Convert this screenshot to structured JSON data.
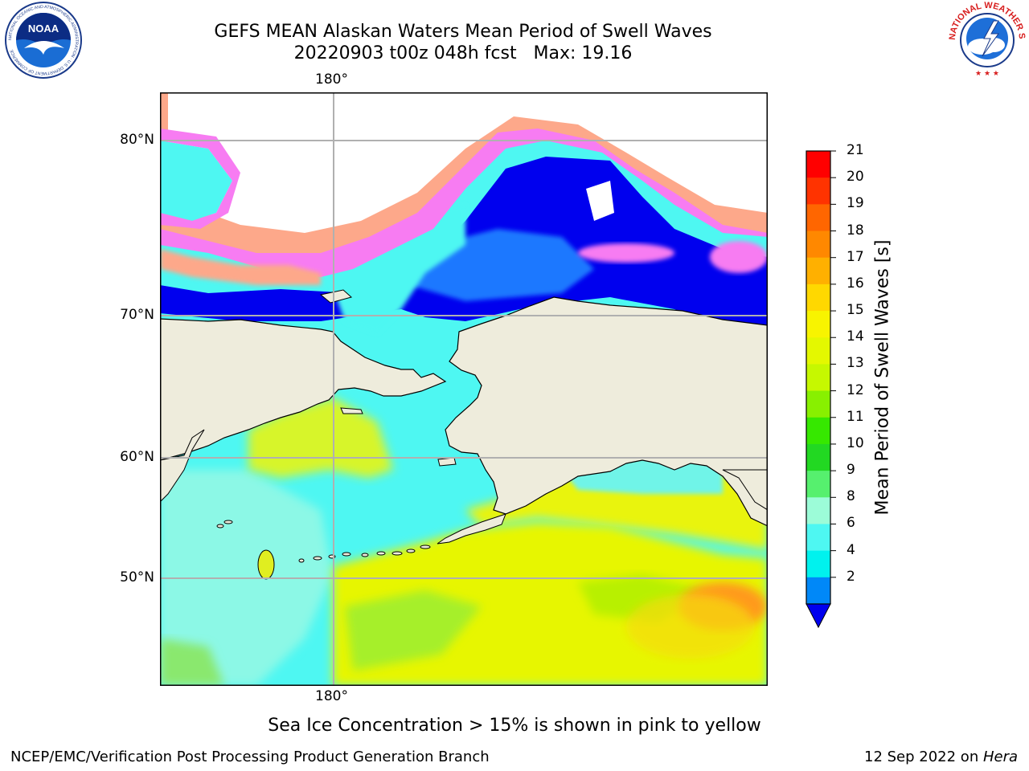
{
  "title": {
    "line1": "GEFS MEAN Alaskan Waters Mean Period of Swell Waves",
    "line2": "20220903 t00z 048h fcst   Max: 19.16"
  },
  "map": {
    "lon_label_top": "180°",
    "lon_label_bottom": "180°",
    "lat_labels": [
      "80°N",
      "70°N",
      "60°N",
      "50°N"
    ],
    "colors": {
      "ocean_cyan": "#4ef7f2",
      "land": "#eeecdc",
      "ice_pink": "#f77cf2",
      "ice_orange": "#fda88a",
      "deep_blue": "#0000ee",
      "gridline": "#b0b0b0"
    }
  },
  "colorbar": {
    "label": "Mean Period of Swell Waves [s]",
    "ticks": [
      "21",
      "20",
      "19",
      "18",
      "17",
      "16",
      "15",
      "14",
      "13",
      "12",
      "11",
      "10",
      "9",
      "8",
      "6",
      "4",
      "2"
    ],
    "colors": [
      "#ff0000",
      "#ff3300",
      "#ff6600",
      "#ff8800",
      "#ffb000",
      "#ffd800",
      "#f8f400",
      "#e4f800",
      "#c6f800",
      "#88f000",
      "#36e800",
      "#22d822",
      "#56f06e",
      "#9cfcd8",
      "#4ef7f2",
      "#00f2ee",
      "#0088f8"
    ],
    "extend_color": "#0000ee"
  },
  "note": "Sea Ice Concentration > 15% is shown in pink to yellow",
  "footer": {
    "left": "NCEP/EMC/Verification Post Processing Product Generation Branch",
    "date": "12 Sep 2022 on ",
    "machine": "Hera"
  },
  "logos": {
    "noaa_text": "NOAA",
    "noaa_ring": "NATIONAL OCEANIC AND ATMOSPHERIC ADMINISTRATION · U.S. DEPARTMENT OF COMMERCE",
    "nws_ring": "NATIONAL WEATHER SERVICE"
  }
}
